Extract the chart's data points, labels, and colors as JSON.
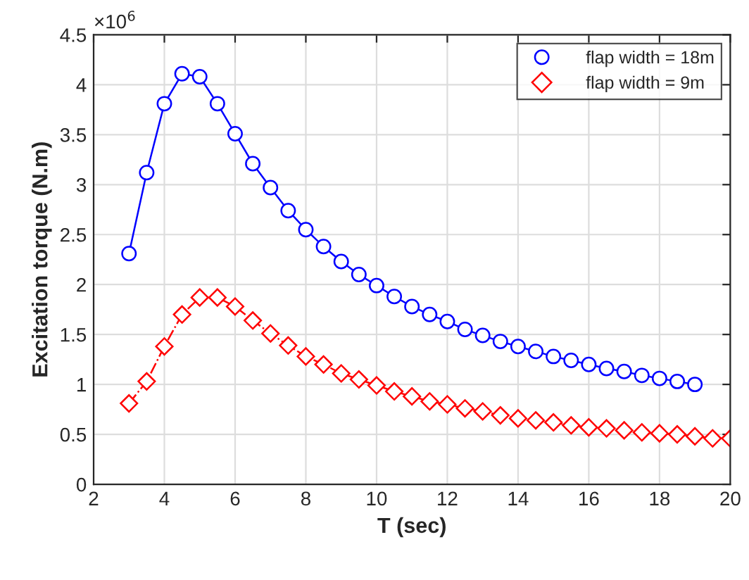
{
  "chart_data": {
    "type": "line",
    "xlabel": "T (sec)",
    "ylabel": "Excitation torque (N.m)",
    "annotations": [
      "×10$^{6}$"
    ],
    "xlim": [
      2,
      20
    ],
    "xticks": [
      2,
      4,
      6,
      8,
      10,
      12,
      14,
      16,
      18,
      20
    ],
    "ylim": [
      0,
      4.5
    ],
    "yticks": [
      0,
      0.5,
      1,
      1.5,
      2,
      2.5,
      3,
      3.5,
      4,
      4.5
    ],
    "grid": true,
    "legend": "top right",
    "series": [
      {
        "name": "flap width = 18m",
        "color": "#0000ff",
        "marker": "circle",
        "line_style": "solid",
        "x": [
          3,
          3.5,
          4,
          4.5,
          5,
          5.5,
          6,
          6.5,
          7,
          7.5,
          8,
          8.5,
          9,
          9.5,
          10,
          10.5,
          11,
          11.5,
          12,
          12.5,
          13,
          13.5,
          14,
          14.5,
          15,
          15.5,
          16,
          16.5,
          17,
          17.5,
          18,
          18.5,
          19
        ],
        "values": [
          2.31,
          3.12,
          3.81,
          4.11,
          4.08,
          3.81,
          3.51,
          3.21,
          2.97,
          2.74,
          2.55,
          2.38,
          2.23,
          2.1,
          1.99,
          1.88,
          1.78,
          1.7,
          1.63,
          1.55,
          1.49,
          1.43,
          1.38,
          1.33,
          1.28,
          1.24,
          1.2,
          1.16,
          1.13,
          1.09,
          1.06,
          1.03,
          1.0
        ]
      },
      {
        "name": "flap width = 9m",
        "color": "#ff0000",
        "marker": "diamond",
        "line_style": "dashdot",
        "x": [
          3,
          3.5,
          4,
          4.5,
          5,
          5.5,
          6,
          6.5,
          7,
          7.5,
          8,
          8.5,
          9,
          9.5,
          10,
          10.5,
          11,
          11.5,
          12,
          12.5,
          13,
          13.5,
          14,
          14.5,
          15,
          15.5,
          16,
          16.5,
          17,
          17.5,
          18,
          18.5,
          19,
          19.5,
          20
        ],
        "values": [
          0.81,
          1.03,
          1.38,
          1.7,
          1.87,
          1.87,
          1.78,
          1.64,
          1.51,
          1.39,
          1.28,
          1.2,
          1.11,
          1.05,
          0.99,
          0.93,
          0.88,
          0.83,
          0.8,
          0.76,
          0.73,
          0.69,
          0.66,
          0.64,
          0.62,
          0.59,
          0.57,
          0.56,
          0.54,
          0.52,
          0.51,
          0.5,
          0.48,
          0.46,
          0.46
        ]
      }
    ]
  }
}
